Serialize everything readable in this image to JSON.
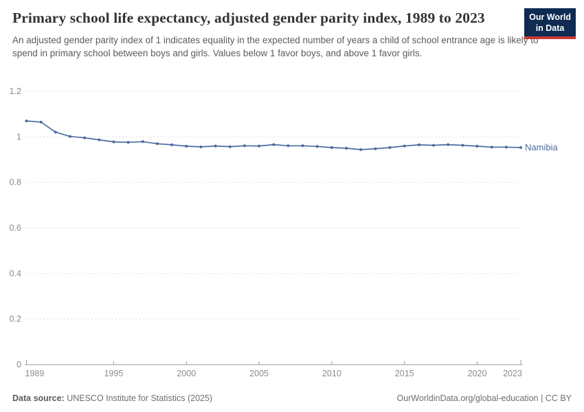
{
  "header": {
    "title": "Primary school life expectancy, adjusted gender parity index, 1989 to 2023",
    "subtitle": "An adjusted gender parity index of 1 indicates equality in the expected number of years a child of school entrance age is likely to spend in primary school between boys and girls. Values below 1 favor boys, and above 1 favor girls.",
    "logo": {
      "line1": "Our World",
      "line2": "in Data"
    }
  },
  "chart_data": {
    "type": "line",
    "title": "Primary school life expectancy, adjusted gender parity index, 1989 to 2023",
    "xlabel": "",
    "ylabel": "",
    "xlim": [
      1989,
      2023
    ],
    "ylim": [
      0,
      1.2
    ],
    "grid": "horizontal-dashed",
    "legend_position": "end-of-line",
    "x": [
      1989,
      1990,
      1991,
      1992,
      1993,
      1994,
      1995,
      1996,
      1997,
      1998,
      1999,
      2000,
      2001,
      2002,
      2003,
      2004,
      2005,
      2006,
      2007,
      2008,
      2009,
      2010,
      2011,
      2012,
      2013,
      2014,
      2015,
      2016,
      2017,
      2018,
      2019,
      2020,
      2021,
      2022,
      2023
    ],
    "series": [
      {
        "name": "Namibia",
        "color": "#4C6A9C",
        "values": [
          1.07,
          1.065,
          1.021,
          1.002,
          0.996,
          0.987,
          0.978,
          0.976,
          0.979,
          0.97,
          0.965,
          0.959,
          0.956,
          0.96,
          0.957,
          0.961,
          0.96,
          0.966,
          0.961,
          0.961,
          0.958,
          0.953,
          0.95,
          0.944,
          0.948,
          0.953,
          0.96,
          0.965,
          0.963,
          0.966,
          0.963,
          0.959,
          0.955,
          0.955,
          0.953
        ]
      }
    ],
    "xticks": [
      1989,
      1995,
      2000,
      2005,
      2010,
      2015,
      2020,
      2023
    ],
    "yticks": [
      {
        "value": 0,
        "label": "0"
      },
      {
        "value": 0.2,
        "label": "0.2"
      },
      {
        "value": 0.4,
        "label": "0.4"
      },
      {
        "value": 0.6,
        "label": "0.6"
      },
      {
        "value": 0.8,
        "label": "0.8"
      },
      {
        "value": 1,
        "label": "1"
      },
      {
        "value": 1.2,
        "label": "1.2"
      }
    ]
  },
  "footer": {
    "source_label": "Data source:",
    "source_text": " UNESCO Institute for Statistics (2025)",
    "link_text": "OurWorldinData.org/global-education | CC BY"
  },
  "colors": {
    "line": "#4C6A9C",
    "logo_bg": "#0f2b52",
    "logo_bar": "#cb3831",
    "gridline": "#dedede",
    "axis": "#9a9a9a",
    "tick_text": "#8b8b8b"
  }
}
